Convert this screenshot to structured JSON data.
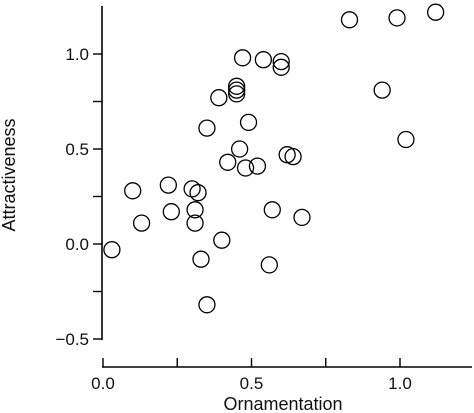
{
  "chart_data": {
    "type": "scatter",
    "title": "",
    "xlabel": "Ornamentation",
    "ylabel": "Attractiveness",
    "xlim": [
      -0.02,
      1.22
    ],
    "ylim": [
      -0.5,
      1.25
    ],
    "grid": false,
    "legend": "none",
    "marker_color": "#000000",
    "x_ticks": [
      {
        "value": 0.0,
        "label": "0.0"
      },
      {
        "value": 0.25,
        "label": ""
      },
      {
        "value": 0.5,
        "label": "0.5"
      },
      {
        "value": 0.75,
        "label": ""
      },
      {
        "value": 1.0,
        "label": "1.0"
      }
    ],
    "y_ticks": [
      {
        "value": -0.5,
        "label": "−0.5"
      },
      {
        "value": -0.25,
        "label": ""
      },
      {
        "value": 0.0,
        "label": "0.0"
      },
      {
        "value": 0.25,
        "label": ""
      },
      {
        "value": 0.5,
        "label": "0.5"
      },
      {
        "value": 0.75,
        "label": ""
      },
      {
        "value": 1.0,
        "label": "1.0"
      }
    ],
    "series": [
      {
        "points": [
          [
            0.03,
            -0.03
          ],
          [
            0.1,
            0.28
          ],
          [
            0.13,
            0.11
          ],
          [
            0.22,
            0.31
          ],
          [
            0.23,
            0.17
          ],
          [
            0.3,
            0.29
          ],
          [
            0.31,
            0.18
          ],
          [
            0.31,
            0.11
          ],
          [
            0.32,
            0.27
          ],
          [
            0.33,
            -0.08
          ],
          [
            0.35,
            0.61
          ],
          [
            0.35,
            -0.32
          ],
          [
            0.39,
            0.77
          ],
          [
            0.4,
            0.02
          ],
          [
            0.42,
            0.43
          ],
          [
            0.45,
            0.79
          ],
          [
            0.45,
            0.81
          ],
          [
            0.45,
            0.83
          ],
          [
            0.46,
            0.5
          ],
          [
            0.47,
            0.98
          ],
          [
            0.48,
            0.4
          ],
          [
            0.49,
            0.64
          ],
          [
            0.52,
            0.41
          ],
          [
            0.54,
            0.97
          ],
          [
            0.56,
            -0.11
          ],
          [
            0.57,
            0.18
          ],
          [
            0.6,
            0.93
          ],
          [
            0.6,
            0.96
          ],
          [
            0.62,
            0.47
          ],
          [
            0.64,
            0.46
          ],
          [
            0.67,
            0.14
          ],
          [
            0.83,
            1.18
          ],
          [
            0.94,
            0.81
          ],
          [
            0.99,
            1.19
          ],
          [
            1.02,
            0.55
          ],
          [
            1.12,
            1.22
          ]
        ]
      }
    ]
  }
}
